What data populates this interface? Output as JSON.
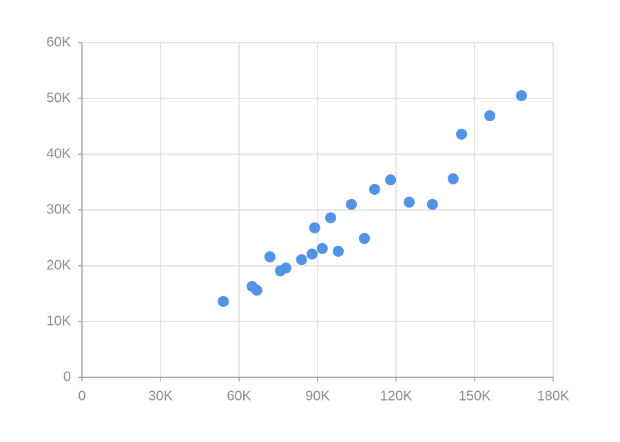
{
  "chart_data": {
    "type": "scatter",
    "color": "#5393e6",
    "grid": true,
    "x": [
      54000,
      65000,
      66800,
      71800,
      75800,
      77900,
      83900,
      87900,
      88900,
      91800,
      95000,
      97900,
      102900,
      107900,
      111800,
      117900,
      125000,
      133900,
      141800,
      145000,
      155800,
      167900
    ],
    "values": [
      13600,
      16300,
      15600,
      21600,
      19100,
      19600,
      21100,
      22100,
      26800,
      23100,
      28600,
      22600,
      31000,
      24900,
      33700,
      35400,
      31400,
      31000,
      35600,
      43600,
      46900,
      50500
    ],
    "xlim": [
      0,
      180000
    ],
    "xticks": [
      0,
      {
        "value": 30000,
        "label": "30K"
      },
      {
        "value": 60000,
        "label": "60K"
      },
      {
        "value": 90000,
        "label": "90K"
      },
      {
        "value": 120000,
        "label": "120K"
      },
      {
        "value": 150000,
        "label": "150K"
      },
      {
        "value": 180000,
        "label": "180K"
      }
    ],
    "ylim": [
      0,
      60000
    ],
    "yticks": [
      0,
      {
        "value": 10000,
        "label": "10K"
      },
      {
        "value": 20000,
        "label": "20K"
      },
      {
        "value": 30000,
        "label": "30K"
      },
      {
        "value": 40000,
        "label": "40K"
      },
      {
        "value": 50000,
        "label": "50K"
      },
      {
        "value": 60000,
        "label": "60K"
      }
    ]
  }
}
